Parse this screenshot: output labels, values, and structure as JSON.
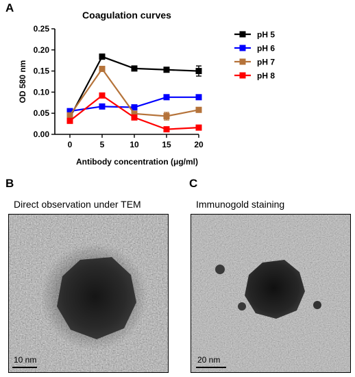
{
  "panels": {
    "a": {
      "letter": "A"
    },
    "b": {
      "letter": "B",
      "caption": "Direct observation under TEM",
      "scalebar": "10 nm"
    },
    "c": {
      "letter": "C",
      "caption": "Immunogold staining",
      "scalebar": "20 nm"
    }
  },
  "chart_data": {
    "type": "line",
    "title": "Coagulation curves",
    "xlabel": "Antibody concentration (μg/ml)",
    "ylabel": "OD 580 nm",
    "x": [
      0,
      5,
      10,
      15,
      20
    ],
    "xlim": [
      0,
      20
    ],
    "ylim": [
      0,
      0.25
    ],
    "yticks": [
      "0.00",
      "0.05",
      "0.10",
      "0.15",
      "0.20",
      "0.25"
    ],
    "grid": false,
    "legend_position": "right",
    "series": [
      {
        "name": "pH 5",
        "color": "#000000",
        "values": [
          0.04,
          0.184,
          0.156,
          0.153,
          0.15
        ],
        "errors": [
          0.004,
          0.006,
          0.004,
          0.004,
          0.012
        ]
      },
      {
        "name": "pH 6",
        "color": "#0000ff",
        "values": [
          0.055,
          0.066,
          0.064,
          0.088,
          0.088
        ],
        "errors": [
          0.004,
          0.005,
          0.004,
          0.004,
          0.004
        ]
      },
      {
        "name": "pH 7",
        "color": "#b5733a",
        "values": [
          0.045,
          0.155,
          0.049,
          0.043,
          0.058
        ],
        "errors": [
          0.004,
          0.005,
          0.004,
          0.009,
          0.005
        ]
      },
      {
        "name": "pH 8",
        "color": "#ff0000",
        "values": [
          0.032,
          0.092,
          0.04,
          0.012,
          0.016
        ],
        "errors": [
          0.004,
          0.005,
          0.004,
          0.003,
          0.003
        ]
      }
    ]
  }
}
